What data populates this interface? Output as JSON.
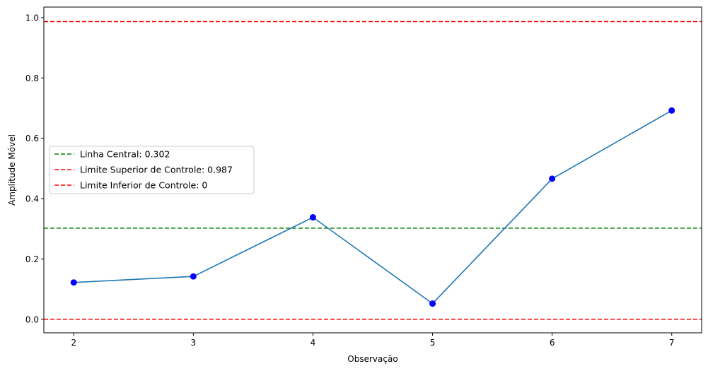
{
  "chart_data": {
    "type": "line",
    "title": "",
    "xlabel": "Observação",
    "ylabel": "Amplitude Móvel",
    "x": [
      2,
      3,
      4,
      5,
      6,
      7
    ],
    "xlim": [
      1.75,
      7.25
    ],
    "ylim": [
      -0.045,
      1.035
    ],
    "x_ticks": [
      "2",
      "3",
      "4",
      "5",
      "6",
      "7"
    ],
    "y_ticks": [
      "0.0",
      "0.2",
      "0.4",
      "0.6",
      "0.8",
      "1.0"
    ],
    "grid": false,
    "series": [
      {
        "type": "line",
        "values": [
          0.122,
          0.142,
          0.338,
          0.052,
          0.466,
          0.692
        ],
        "line_color": "#1f77b4",
        "marker_color": "#0000ff"
      }
    ],
    "reference_lines": [
      {
        "name": "Linha Central: 0.302",
        "value": 0.302,
        "color": "#008000",
        "style": "dashed"
      },
      {
        "name": "Limite Superior de Controle: 0.987",
        "value": 0.987,
        "color": "#ff0000",
        "style": "dashed"
      },
      {
        "name": "Limite Inferior de Controle: 0",
        "value": 0,
        "color": "#ff0000",
        "style": "dashed"
      }
    ],
    "legend_position": "center-left"
  }
}
